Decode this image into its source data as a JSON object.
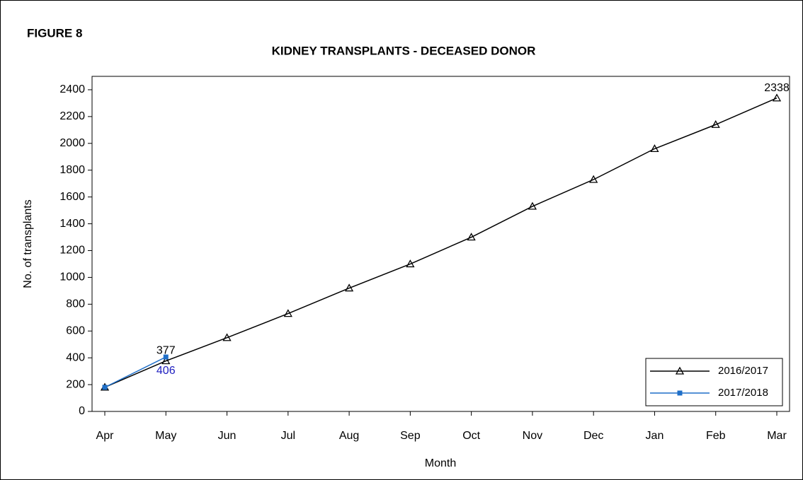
{
  "chart_data": {
    "type": "line",
    "figure_label": "FIGURE 8",
    "title": "KIDNEY TRANSPLANTS - DECEASED DONOR",
    "x_label": "Month",
    "y_label": "No. of transplants",
    "categories": [
      "Apr",
      "May",
      "Jun",
      "Jul",
      "Aug",
      "Sep",
      "Oct",
      "Nov",
      "Dec",
      "Jan",
      "Feb",
      "Mar"
    ],
    "series": [
      {
        "name": "2016/2017",
        "color": "#000000",
        "marker": "triangle",
        "values": [
          180,
          377,
          550,
          730,
          920,
          1100,
          1300,
          1530,
          1730,
          1960,
          2140,
          2338
        ],
        "value_labels": [
          null,
          "377",
          null,
          null,
          null,
          null,
          null,
          null,
          null,
          null,
          null,
          "2338"
        ]
      },
      {
        "name": "2017/2018",
        "color": "#1f6fc8",
        "marker": "square",
        "values": [
          180,
          406,
          null,
          null,
          null,
          null,
          null,
          null,
          null,
          null,
          null,
          null
        ],
        "value_labels": [
          null,
          "406",
          null,
          null,
          null,
          null,
          null,
          null,
          null,
          null,
          null,
          null
        ]
      }
    ],
    "ylim": [
      0,
      2500
    ],
    "yticks": [
      0,
      200,
      400,
      600,
      800,
      1000,
      1200,
      1400,
      1600,
      1800,
      2000,
      2200,
      2400
    ],
    "legend": "lower right"
  }
}
